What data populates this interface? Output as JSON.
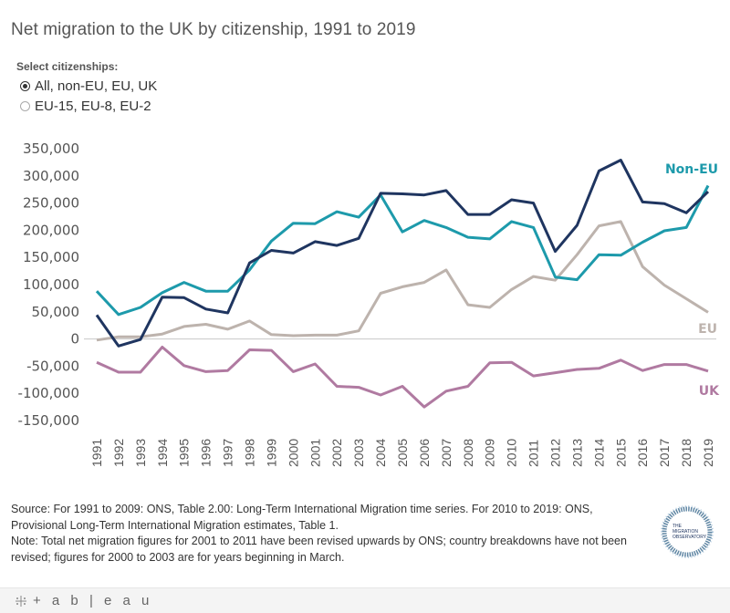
{
  "title": "Net migration to the UK by citizenship, 1991 to 2019",
  "filter": {
    "label": "Select citizenships:",
    "options": [
      {
        "label": "All, non-EU, EU, UK",
        "selected": true
      },
      {
        "label": "EU-15, EU-8, EU-2",
        "selected": false
      }
    ]
  },
  "chart_data": {
    "type": "line",
    "title": "Net migration to the UK by citizenship, 1991 to 2019",
    "xlabel": "",
    "ylabel": "",
    "ylim": [
      -150000,
      350000
    ],
    "yticks": [
      350000,
      300000,
      250000,
      200000,
      150000,
      100000,
      50000,
      0,
      -50000,
      -100000,
      -150000
    ],
    "ytick_labels": [
      "350,000",
      "300,000",
      "250,000",
      "200,000",
      "150,000",
      "100,000",
      "50,000",
      "0",
      "-50,000",
      "-100,000",
      "-150,000"
    ],
    "grid": false,
    "zero_line": true,
    "x": [
      "1991",
      "1992",
      "1993",
      "1994",
      "1995",
      "1996",
      "1997",
      "1998",
      "1999",
      "2000",
      "2001",
      "2002",
      "2003",
      "2004",
      "2005",
      "2006",
      "2007",
      "2008",
      "2009",
      "2010",
      "2011",
      "2012",
      "2013",
      "2014",
      "2015",
      "2016",
      "2017",
      "2018",
      "2019"
    ],
    "series": [
      {
        "name": "All",
        "label": "",
        "color": "#1f3560",
        "values": [
          44000,
          -13000,
          -1000,
          77000,
          76000,
          55000,
          48000,
          140000,
          163000,
          158000,
          179000,
          172000,
          185000,
          268000,
          267000,
          265000,
          273000,
          229000,
          229000,
          256000,
          250000,
          161000,
          209000,
          309000,
          329000,
          252000,
          249000,
          232000,
          271000
        ]
      },
      {
        "name": "Non-EU",
        "label": "Non-EU",
        "color": "#1d9aab",
        "values": [
          88000,
          45000,
          58000,
          85000,
          104000,
          88000,
          88000,
          127000,
          180000,
          213000,
          212000,
          234000,
          224000,
          265000,
          197000,
          218000,
          205000,
          187000,
          184000,
          216000,
          205000,
          114000,
          109000,
          155000,
          154000,
          178000,
          199000,
          205000,
          282000
        ]
      },
      {
        "name": "EU",
        "label": "EU",
        "color": "#bdb3ad",
        "values": [
          -2000,
          4000,
          4000,
          9000,
          23000,
          27000,
          18000,
          33000,
          8000,
          6000,
          7000,
          7000,
          15000,
          84000,
          96000,
          104000,
          127000,
          63000,
          58000,
          91000,
          115000,
          108000,
          155000,
          208000,
          216000,
          133000,
          99000,
          74000,
          49000
        ]
      },
      {
        "name": "UK",
        "label": "UK",
        "color": "#b07aa1",
        "values": [
          -43000,
          -61000,
          -61000,
          -15000,
          -49000,
          -60000,
          -58000,
          -20000,
          -21000,
          -60000,
          -46000,
          -87000,
          -89000,
          -103000,
          -87000,
          -125000,
          -96000,
          -87000,
          -44000,
          -43000,
          -68000,
          -62000,
          -56000,
          -54000,
          -39000,
          -58000,
          -47000,
          -47000,
          -59000
        ]
      }
    ]
  },
  "footer": {
    "source": "Source: For 1991 to 2009: ONS, Table 2.00: Long-Term International Migration time series. For 2010 to 2019: ONS, Provisional Long-Term International Migration estimates, Table 1.",
    "note": "Note: Total net migration figures for 2001 to 2011 have been revised upwards by ONS; country breakdowns have not been revised; figures for 2000 to 2003 are for years beginning in March."
  },
  "logo": {
    "lines": [
      "THE",
      "MIGRATION",
      "OBSERVATORY"
    ]
  },
  "tableau": {
    "label": "+ a b | e a u"
  }
}
